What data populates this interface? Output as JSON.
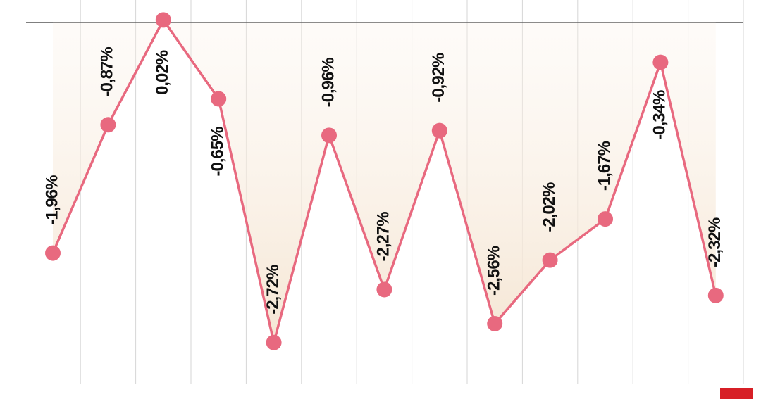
{
  "chart_data": {
    "type": "line",
    "series": [
      {
        "color": "#e8697f",
        "values": [
          -1.96,
          -0.87,
          0.02,
          -0.65,
          -2.72,
          -0.96,
          -2.27,
          -0.92,
          -2.56,
          -2.02,
          -1.67,
          -0.34,
          -2.32
        ],
        "value_labels": [
          "-1,96%",
          "-0,87%",
          "0,02%",
          "-0,65%",
          "-2,72%",
          "-0,96%",
          "-2,27%",
          "-0,92%",
          "-2,56%",
          "-2,02%",
          "-1,67%",
          "-0,34%",
          "-2,32%"
        ]
      }
    ],
    "ylim": [
      -3.2,
      0.19
    ]
  }
}
